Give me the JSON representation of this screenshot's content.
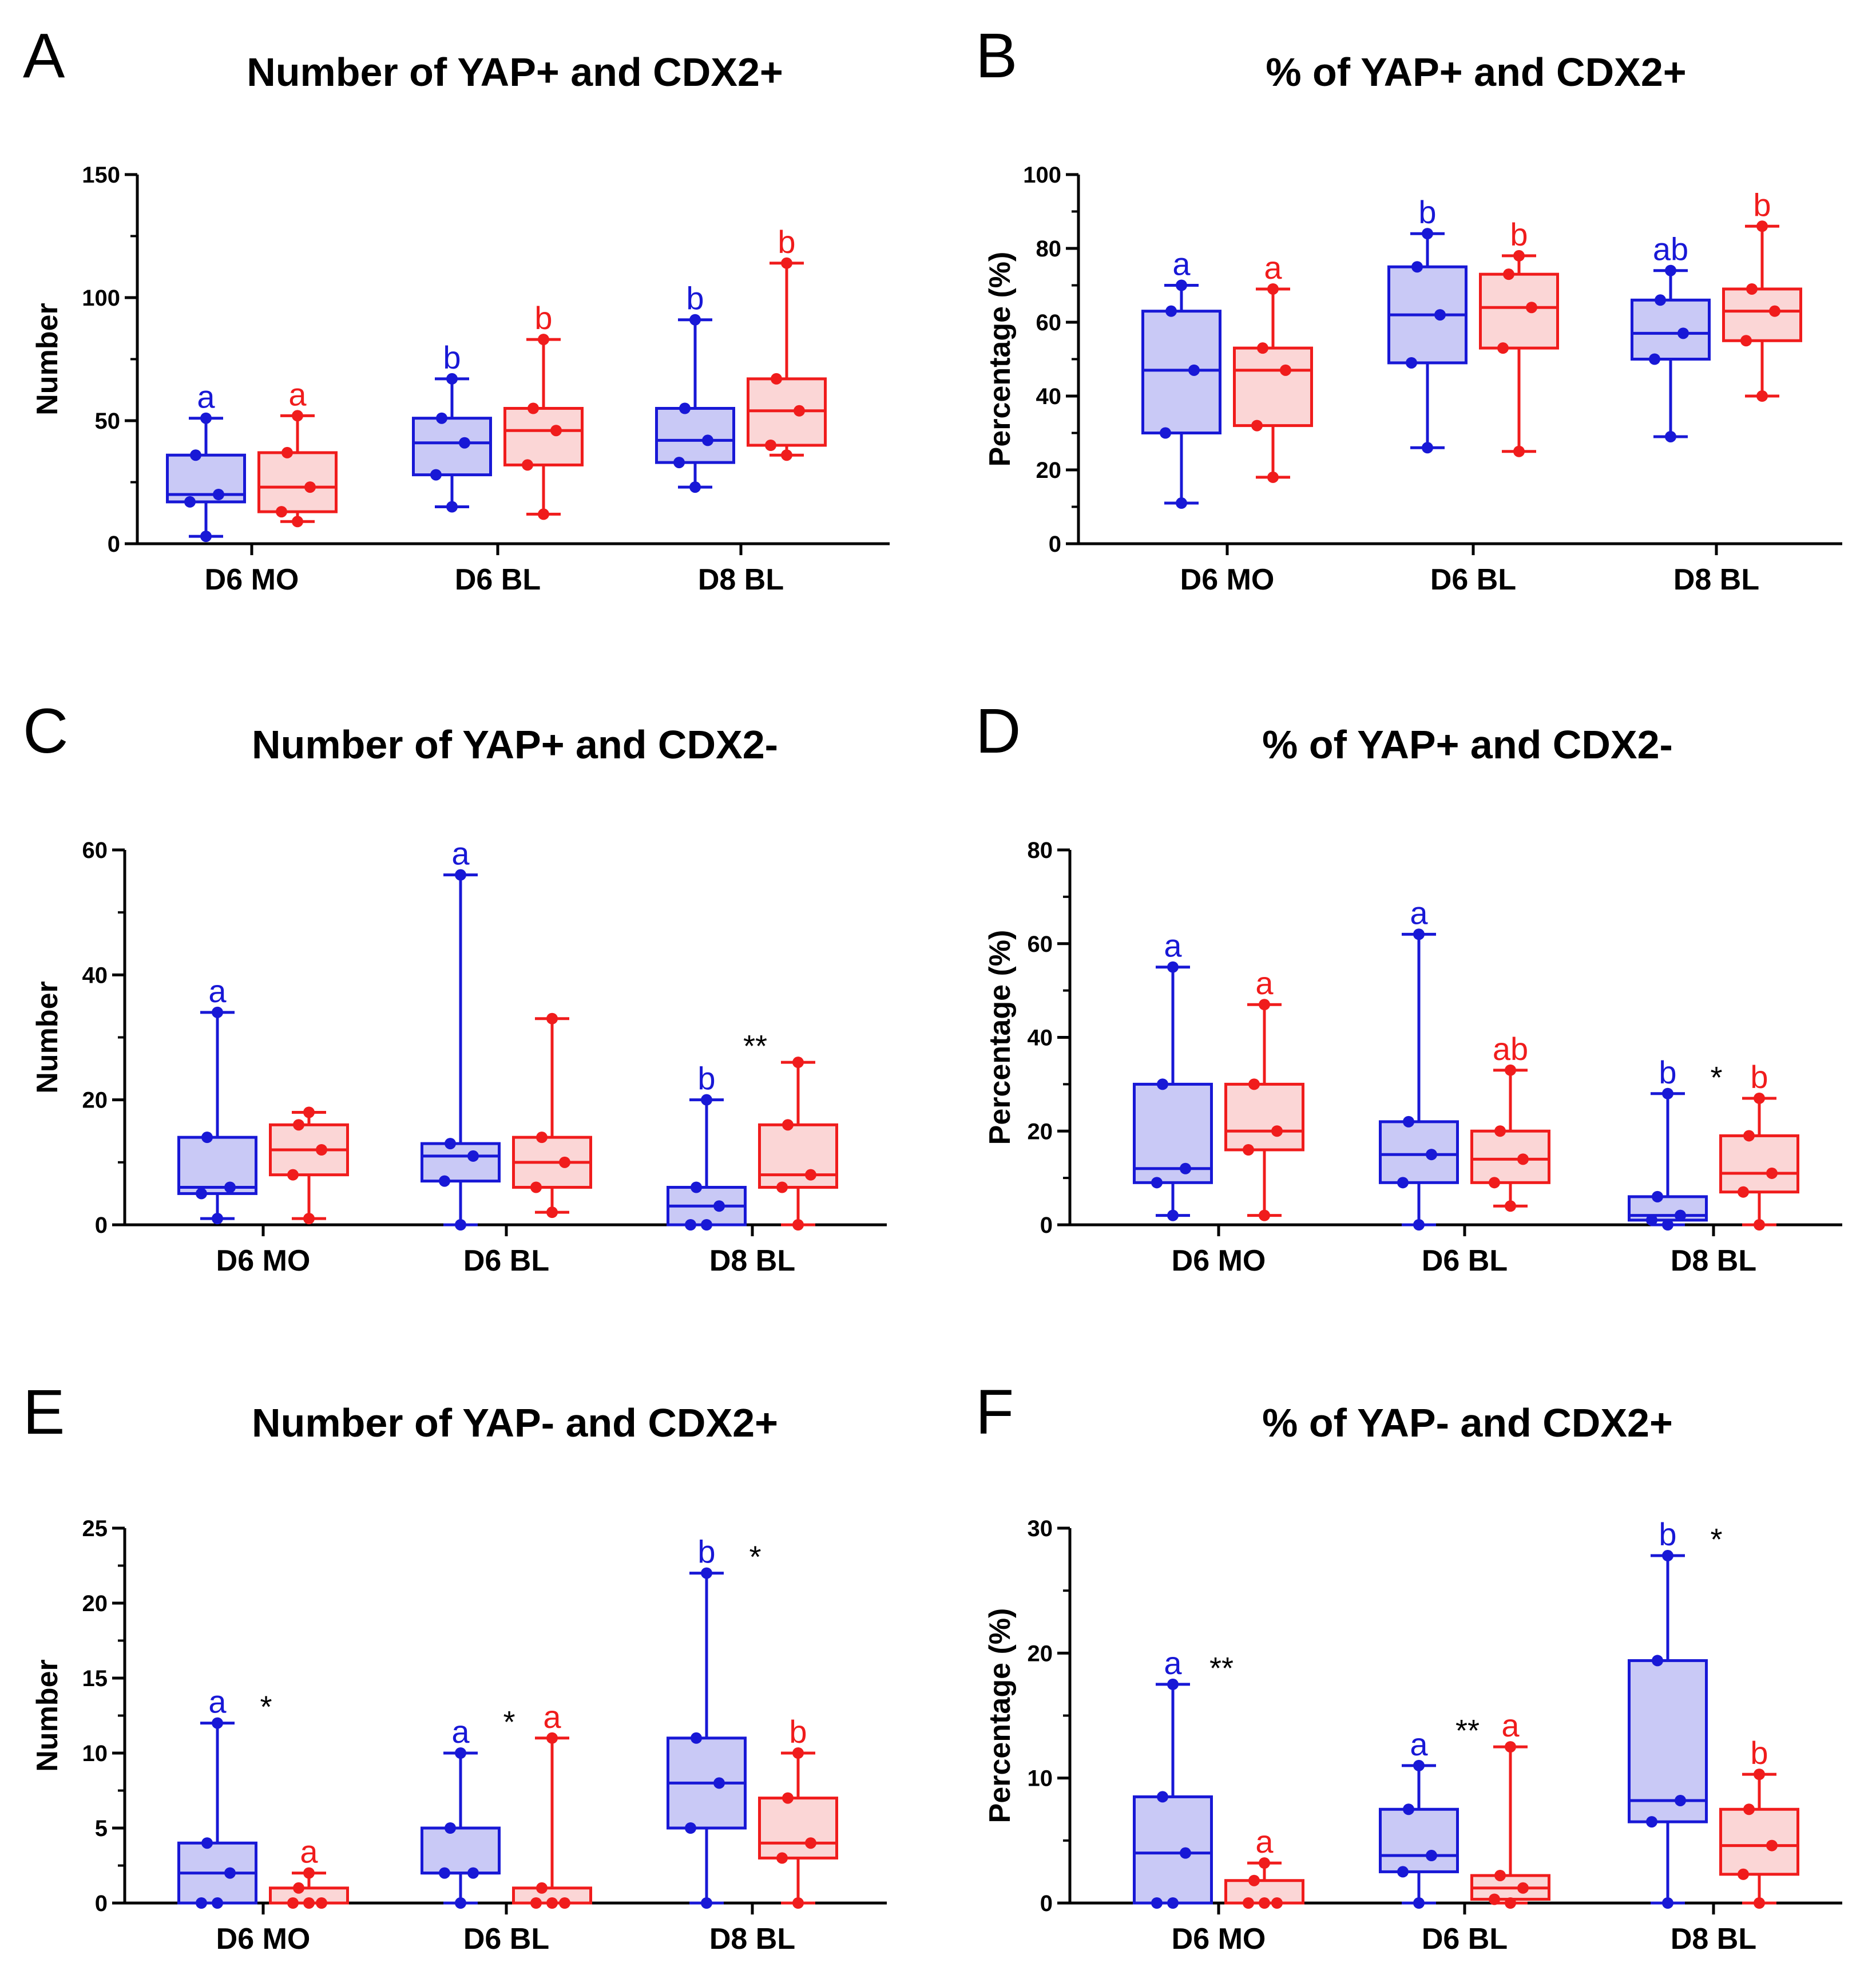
{
  "colors": {
    "blue": "#1818d6",
    "blue_fill": "#c9c9f6",
    "red": "#f01c1c",
    "red_fill": "#fbd6d6",
    "axis": "#000000"
  },
  "chart_data": [
    {
      "type": "box",
      "panel": "A",
      "title": "Number of YAP+ and CDX2+",
      "ylabel": "Number",
      "xlabel": "",
      "ylim": [
        0,
        150
      ],
      "yticks": [
        0,
        50,
        100,
        150
      ],
      "categories": [
        "D6 MO",
        "D6 BL",
        "D8 BL"
      ],
      "series": [
        {
          "name": "blue",
          "color": "blue",
          "stats": [
            {
              "min": 3,
              "q1": 17,
              "median": 20,
              "q3": 36,
              "max": 51
            },
            {
              "min": 15,
              "q1": 28,
              "median": 41,
              "q3": 51,
              "max": 67
            },
            {
              "min": 23,
              "q1": 33,
              "median": 42,
              "q3": 55,
              "max": 91
            }
          ]
        },
        {
          "name": "red",
          "color": "red",
          "stats": [
            {
              "min": 9,
              "q1": 13,
              "median": 23,
              "q3": 37,
              "max": 52
            },
            {
              "min": 12,
              "q1": 32,
              "median": 46,
              "q3": 55,
              "max": 83
            },
            {
              "min": 36,
              "q1": 40,
              "median": 54,
              "q3": 67,
              "max": 114
            }
          ]
        }
      ],
      "sig_letters": [
        [
          "a",
          "a"
        ],
        [
          "b",
          "b"
        ],
        [
          "b",
          "b"
        ]
      ],
      "stars": [
        "",
        "",
        ""
      ]
    },
    {
      "type": "box",
      "panel": "B",
      "title": "% of YAP+ and CDX2+",
      "ylabel": "Percentage (%)",
      "xlabel": "",
      "ylim": [
        0,
        100
      ],
      "yticks": [
        0,
        20,
        40,
        60,
        80,
        100
      ],
      "categories": [
        "D6 MO",
        "D6 BL",
        "D8 BL"
      ],
      "series": [
        {
          "name": "blue",
          "color": "blue",
          "stats": [
            {
              "min": 11,
              "q1": 30,
              "median": 47,
              "q3": 63,
              "max": 70
            },
            {
              "min": 26,
              "q1": 49,
              "median": 62,
              "q3": 75,
              "max": 84
            },
            {
              "min": 29,
              "q1": 50,
              "median": 57,
              "q3": 66,
              "max": 74
            }
          ]
        },
        {
          "name": "red",
          "color": "red",
          "stats": [
            {
              "min": 18,
              "q1": 32,
              "median": 47,
              "q3": 53,
              "max": 69
            },
            {
              "min": 25,
              "q1": 53,
              "median": 64,
              "q3": 73,
              "max": 78
            },
            {
              "min": 40,
              "q1": 55,
              "median": 63,
              "q3": 69,
              "max": 86
            }
          ]
        }
      ],
      "sig_letters": [
        [
          "a",
          "a"
        ],
        [
          "b",
          "b"
        ],
        [
          "ab",
          "b"
        ]
      ],
      "stars": [
        "",
        "",
        ""
      ]
    },
    {
      "type": "box",
      "panel": "C",
      "title": "Number of YAP+ and CDX2-",
      "ylabel": "Number",
      "xlabel": "",
      "ylim": [
        0,
        60
      ],
      "yticks": [
        0,
        20,
        40,
        60
      ],
      "categories": [
        "D6 MO",
        "D6 BL",
        "D8 BL"
      ],
      "series": [
        {
          "name": "blue",
          "color": "blue",
          "stats": [
            {
              "min": 1,
              "q1": 5,
              "median": 6,
              "q3": 14,
              "max": 34
            },
            {
              "min": 0,
              "q1": 7,
              "median": 11,
              "q3": 13,
              "max": 56
            },
            {
              "min": 0,
              "q1": 0,
              "median": 3,
              "q3": 6,
              "max": 20
            }
          ]
        },
        {
          "name": "red",
          "color": "red",
          "stats": [
            {
              "min": 1,
              "q1": 8,
              "median": 12,
              "q3": 16,
              "max": 18
            },
            {
              "min": 2,
              "q1": 6,
              "median": 10,
              "q3": 14,
              "max": 33
            },
            {
              "min": 0,
              "q1": 6,
              "median": 8,
              "q3": 16,
              "max": 26
            }
          ]
        }
      ],
      "sig_letters": [
        [
          "a",
          ""
        ],
        [
          "a",
          ""
        ],
        [
          "b",
          ""
        ]
      ],
      "stars": [
        "",
        "",
        "**"
      ]
    },
    {
      "type": "box",
      "panel": "D",
      "title": "% of YAP+ and CDX2-",
      "ylabel": "Percentage (%)",
      "xlabel": "",
      "ylim": [
        0,
        80
      ],
      "yticks": [
        0,
        20,
        40,
        60,
        80
      ],
      "categories": [
        "D6 MO",
        "D6 BL",
        "D8 BL"
      ],
      "series": [
        {
          "name": "blue",
          "color": "blue",
          "stats": [
            {
              "min": 2,
              "q1": 9,
              "median": 12,
              "q3": 30,
              "max": 55
            },
            {
              "min": 0,
              "q1": 9,
              "median": 15,
              "q3": 22,
              "max": 62
            },
            {
              "min": 0,
              "q1": 1,
              "median": 2,
              "q3": 6,
              "max": 28
            }
          ]
        },
        {
          "name": "red",
          "color": "red",
          "stats": [
            {
              "min": 2,
              "q1": 16,
              "median": 20,
              "q3": 30,
              "max": 47
            },
            {
              "min": 4,
              "q1": 9,
              "median": 14,
              "q3": 20,
              "max": 33
            },
            {
              "min": 0,
              "q1": 7,
              "median": 11,
              "q3": 19,
              "max": 27
            }
          ]
        }
      ],
      "sig_letters": [
        [
          "a",
          "a"
        ],
        [
          "a",
          "ab"
        ],
        [
          "b",
          "b"
        ]
      ],
      "stars": [
        "",
        "",
        "*"
      ]
    },
    {
      "type": "box",
      "panel": "E",
      "title": "Number of YAP- and CDX2+",
      "ylabel": "Number",
      "xlabel": "",
      "ylim": [
        0,
        25
      ],
      "yticks": [
        0,
        5,
        10,
        15,
        20,
        25
      ],
      "categories": [
        "D6 MO",
        "D6 BL",
        "D8 BL"
      ],
      "series": [
        {
          "name": "blue",
          "color": "blue",
          "stats": [
            {
              "min": 0,
              "q1": 0,
              "median": 2,
              "q3": 4,
              "max": 12
            },
            {
              "min": 0,
              "q1": 2,
              "median": 2,
              "q3": 5,
              "max": 10
            },
            {
              "min": 0,
              "q1": 5,
              "median": 8,
              "q3": 11,
              "max": 22
            }
          ]
        },
        {
          "name": "red",
          "color": "red",
          "stats": [
            {
              "min": 0,
              "q1": 0,
              "median": 0,
              "q3": 1,
              "max": 2
            },
            {
              "min": 0,
              "q1": 0,
              "median": 0,
              "q3": 1,
              "max": 11
            },
            {
              "min": 0,
              "q1": 3,
              "median": 4,
              "q3": 7,
              "max": 10
            }
          ]
        }
      ],
      "sig_letters": [
        [
          "a",
          "a"
        ],
        [
          "a",
          "a"
        ],
        [
          "b",
          "b"
        ]
      ],
      "stars": [
        "*",
        "*",
        "*"
      ]
    },
    {
      "type": "box",
      "panel": "F",
      "title": "% of YAP- and CDX2+",
      "ylabel": "Percentage (%)",
      "xlabel": "",
      "ylim": [
        0,
        30
      ],
      "yticks": [
        0,
        10,
        20,
        30
      ],
      "categories": [
        "D6 MO",
        "D6 BL",
        "D8 BL"
      ],
      "series": [
        {
          "name": "blue",
          "color": "blue",
          "stats": [
            {
              "min": 0,
              "q1": 0,
              "median": 4,
              "q3": 8.5,
              "max": 17.5
            },
            {
              "min": 0,
              "q1": 2.5,
              "median": 3.8,
              "q3": 7.5,
              "max": 11
            },
            {
              "min": 0,
              "q1": 6.5,
              "median": 8.2,
              "q3": 19.4,
              "max": 27.8
            }
          ]
        },
        {
          "name": "red",
          "color": "red",
          "stats": [
            {
              "min": 0,
              "q1": 0,
              "median": 0,
              "q3": 1.8,
              "max": 3.2
            },
            {
              "min": 0,
              "q1": 0.3,
              "median": 1.2,
              "q3": 2.2,
              "max": 12.5
            },
            {
              "min": 0,
              "q1": 2.3,
              "median": 4.6,
              "q3": 7.5,
              "max": 10.3
            }
          ]
        }
      ],
      "sig_letters": [
        [
          "a",
          "a"
        ],
        [
          "a",
          "a"
        ],
        [
          "b",
          "b"
        ]
      ],
      "stars": [
        "**",
        "**",
        "*"
      ]
    }
  ]
}
